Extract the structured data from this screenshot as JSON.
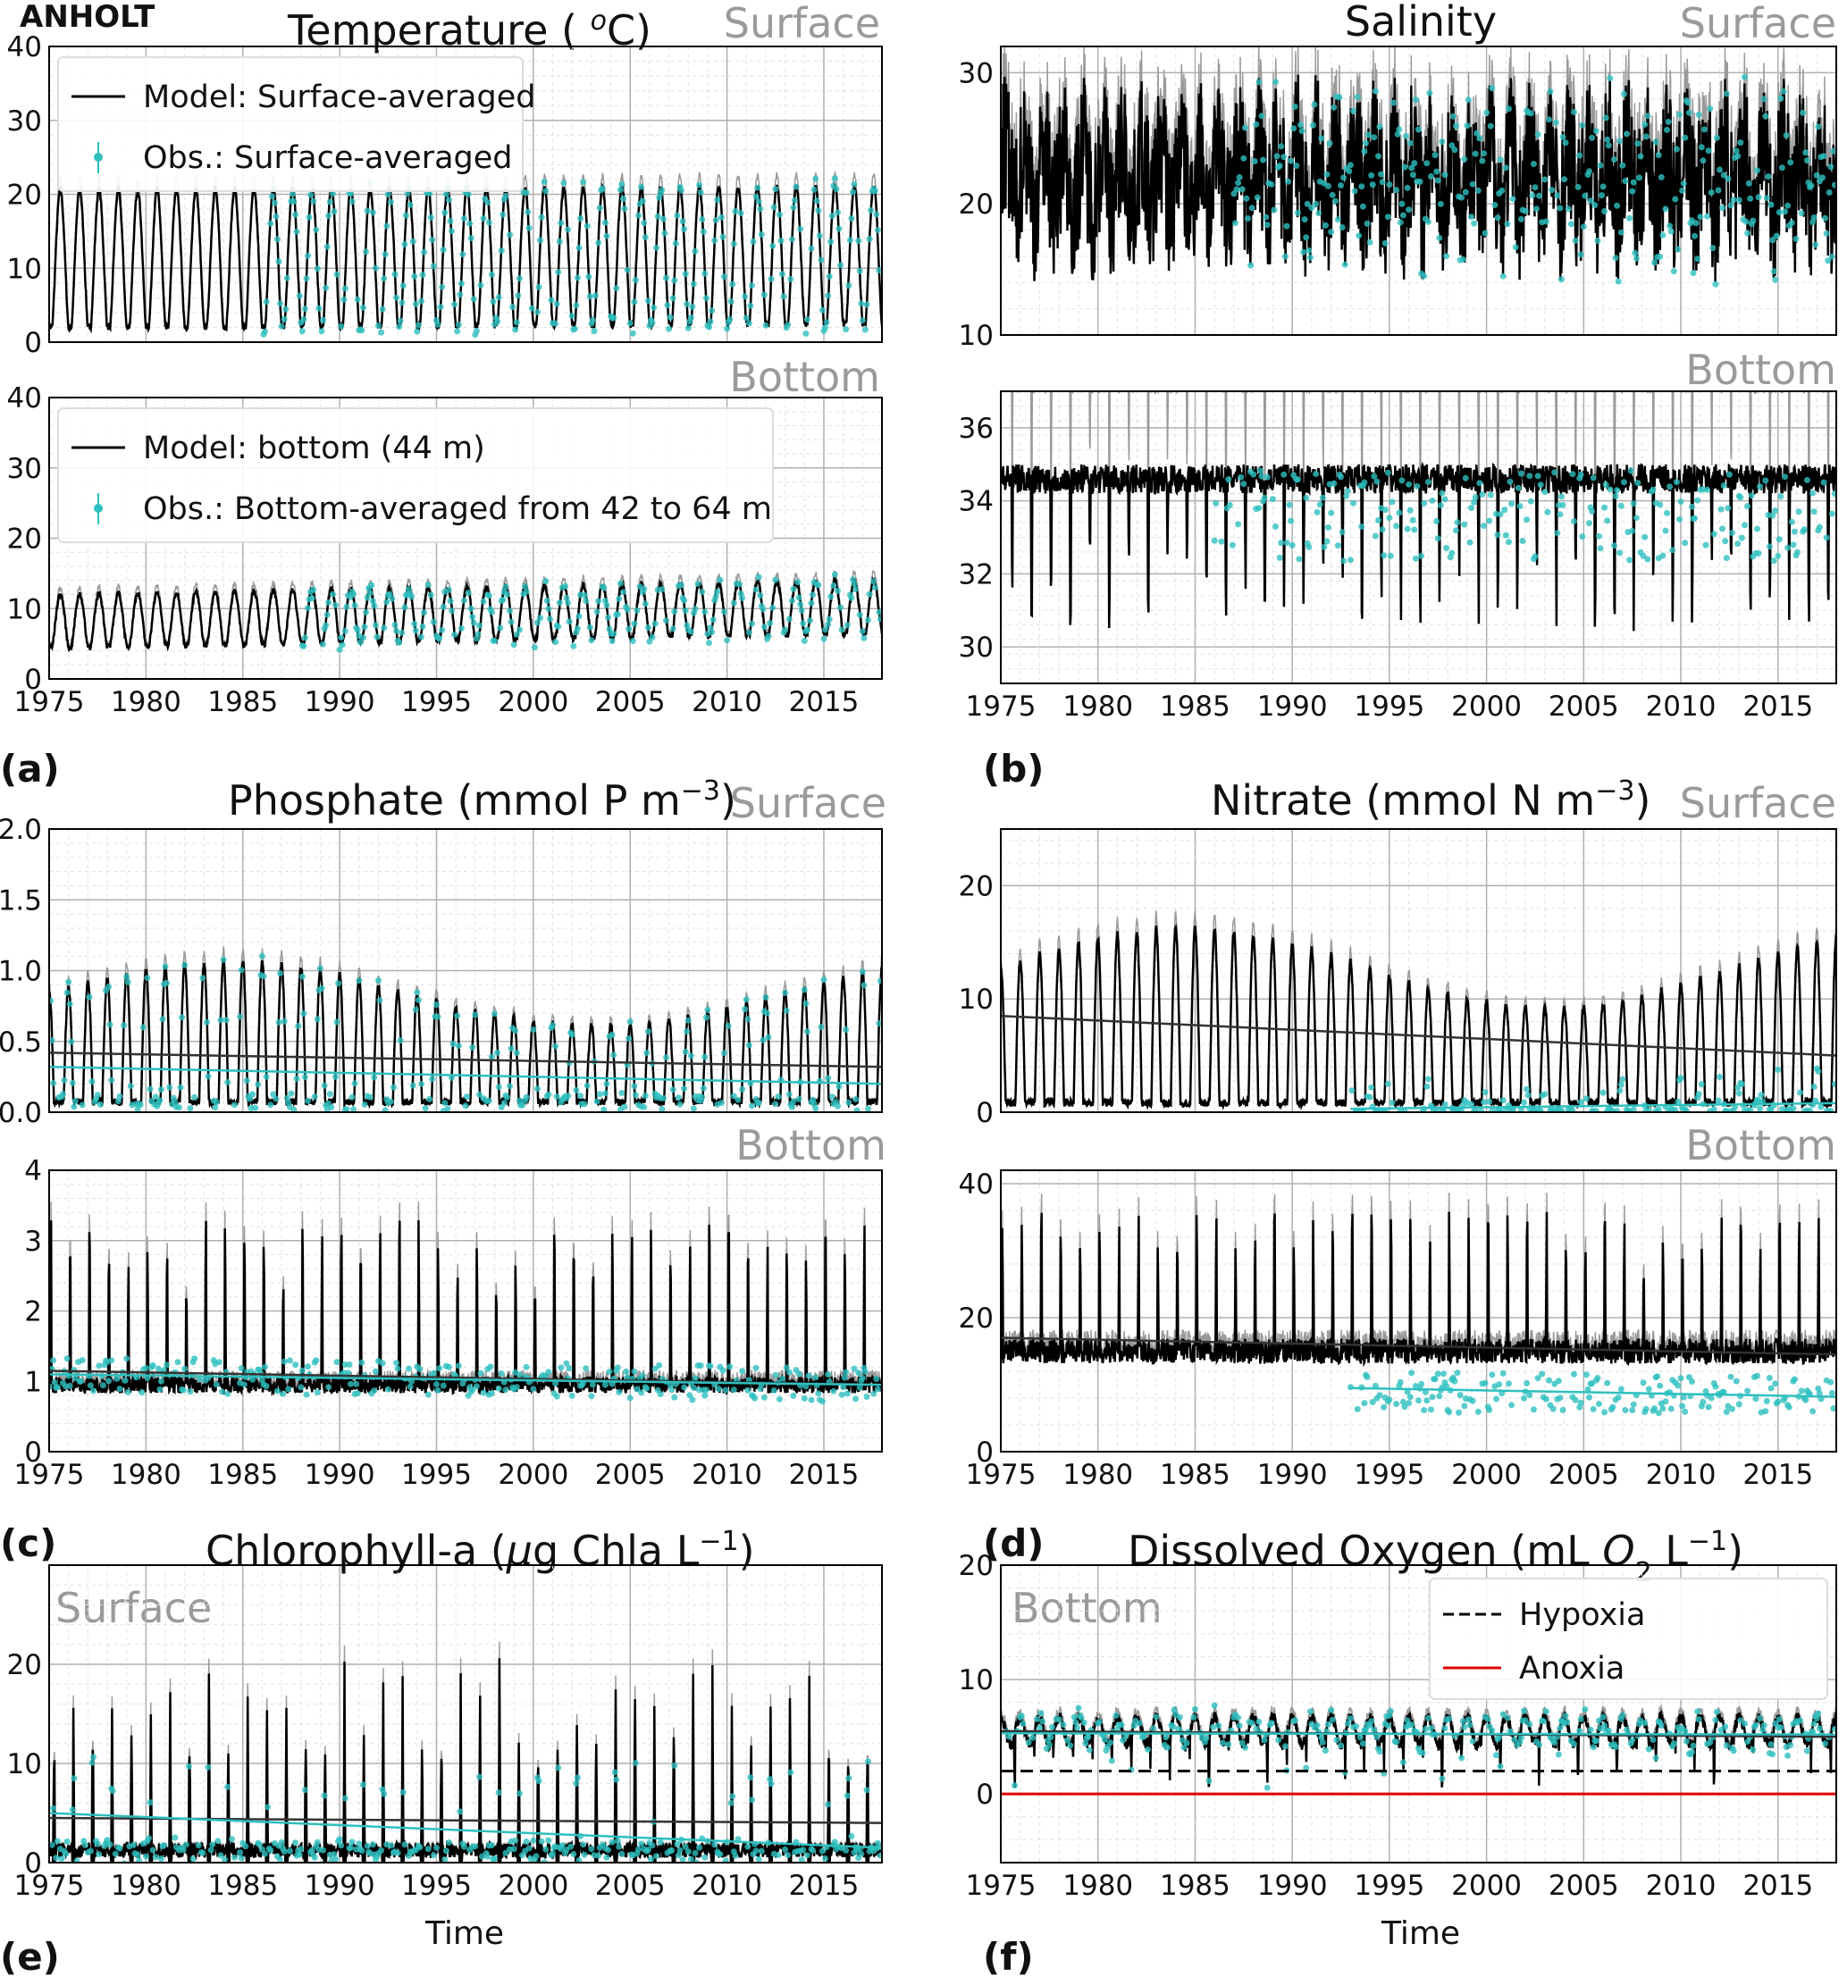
{
  "figure": {
    "station": "ANHOLT",
    "xlabel": "Time",
    "colors": {
      "model": "#000000",
      "model_band": "#9a9a9a",
      "obs": "#2ebfbf",
      "anoxia": "#e00000",
      "tag": "#9a9a9a"
    }
  },
  "chart_data": [
    {
      "id": "temp_surface",
      "type": "line",
      "panel": "(a)",
      "title": "Temperature ( °C)",
      "tag": "Surface",
      "xlim": [
        1975,
        2018
      ],
      "ylim": [
        0,
        40
      ],
      "yticks": [
        "0",
        "10",
        "20",
        "30",
        "40"
      ],
      "xticks": [],
      "series": [
        {
          "name": "Model: Surface-averaged",
          "kind": "model",
          "base": 2,
          "amp": 18.5,
          "trend": 0.5,
          "obs_from": 1986,
          "obs_density": 0.7
        }
      ],
      "legend": [
        "Model: Surface-averaged",
        "Obs.: Surface-averaged"
      ]
    },
    {
      "id": "temp_bottom",
      "type": "line",
      "tag": "Bottom",
      "xlim": [
        1975,
        2018
      ],
      "ylim": [
        0,
        40
      ],
      "yticks": [
        "0",
        "10",
        "20",
        "30",
        "40"
      ],
      "xticks": [
        "1975",
        "1980",
        "1985",
        "1990",
        "1995",
        "2000",
        "2005",
        "2010",
        "2015"
      ],
      "series": [
        {
          "name": "Model: bottom (44 m)",
          "kind": "model",
          "base": 4.5,
          "amp": 7.5,
          "trend": 2.0,
          "obs_from": 1988,
          "obs_density": 0.6
        }
      ],
      "legend": [
        "Model: bottom (44 m)",
        "Obs.: Bottom-averaged from 42 to 64 m"
      ]
    },
    {
      "id": "sal_surface",
      "type": "line",
      "panel": "(b)",
      "title": "Salinity",
      "tag": "Surface",
      "xlim": [
        1975,
        2018
      ],
      "ylim": [
        10,
        32
      ],
      "yticks": [
        "10",
        "20",
        "30"
      ],
      "ytickvals": [
        10,
        20,
        30
      ],
      "xticks": [],
      "series": [
        {
          "name": "Model",
          "kind": "noisy",
          "mean": 22,
          "spread": 5.5,
          "obs_from": 1987,
          "obs_density": 0.8
        }
      ]
    },
    {
      "id": "sal_bottom",
      "type": "line",
      "tag": "Bottom",
      "xlim": [
        1975,
        2018
      ],
      "ylim": [
        29,
        37
      ],
      "yticks": [
        "30",
        "32",
        "34",
        "36"
      ],
      "ytickvals": [
        30,
        32,
        34,
        36
      ],
      "xticks": [
        "1975",
        "1980",
        "1985",
        "1990",
        "1995",
        "2000",
        "2005",
        "2010",
        "2015"
      ],
      "series": [
        {
          "name": "Model",
          "kind": "dips",
          "mean": 34.6,
          "dip": 3.5,
          "obs_from": 1986,
          "obs_mean": 33.6
        }
      ]
    },
    {
      "id": "po4_surface",
      "type": "line",
      "panel": "(c)",
      "title": "Phosphate (mmol P m⁻³)",
      "tag": "Surface",
      "xlim": [
        1975,
        2018
      ],
      "ylim": [
        0,
        2
      ],
      "yticks": [
        "0.0",
        "0.5",
        "1.0",
        "1.5",
        "2.0"
      ],
      "ytickvals": [
        0,
        0.5,
        1,
        1.5,
        2
      ],
      "xticks": [],
      "series": [
        {
          "name": "Model",
          "kind": "winterpeak",
          "base": 0.05,
          "amp": 0.9,
          "obs_from": 1975,
          "trend_model": [
            0.42,
            0.32
          ],
          "trend_obs": [
            0.32,
            0.2
          ]
        }
      ]
    },
    {
      "id": "po4_bottom",
      "type": "line",
      "tag": "Bottom",
      "xlim": [
        1975,
        2018
      ],
      "ylim": [
        0,
        4
      ],
      "yticks": [
        "0",
        "1",
        "2",
        "3",
        "4"
      ],
      "ytickvals": [
        0,
        1,
        2,
        3,
        4
      ],
      "xticks": [
        "1975",
        "1980",
        "1985",
        "1990",
        "1995",
        "2000",
        "2005",
        "2010",
        "2015"
      ],
      "series": [
        {
          "name": "Model",
          "kind": "spiky",
          "base": 0.95,
          "amp": 1.8,
          "obs_from": 1975,
          "trend_model": [
            1.15,
            0.95
          ],
          "trend_obs": [
            1.1,
            0.95
          ]
        }
      ]
    },
    {
      "id": "no3_surface",
      "type": "line",
      "panel": "(d)",
      "title": "Nitrate (mmol N m⁻³)",
      "tag": "Surface",
      "xlim": [
        1975,
        2018
      ],
      "ylim": [
        0,
        25
      ],
      "yticks": [
        "0",
        "10",
        "20"
      ],
      "ytickvals": [
        0,
        10,
        20
      ],
      "xticks": [],
      "series": [
        {
          "name": "Model",
          "kind": "winterpeak",
          "base": 0.5,
          "amp": 14,
          "obs_from": 1993,
          "trend_model": [
            8.5,
            5.0
          ],
          "trend_obs": [
            0.3,
            0.8
          ]
        }
      ]
    },
    {
      "id": "no3_bottom",
      "type": "line",
      "tag": "Bottom",
      "xlim": [
        1975,
        2018
      ],
      "ylim": [
        0,
        42
      ],
      "yticks": [
        "0",
        "20",
        "40"
      ],
      "ytickvals": [
        0,
        20,
        40
      ],
      "xticks": [
        "1975",
        "1980",
        "1985",
        "1990",
        "1995",
        "2000",
        "2005",
        "2010",
        "2015"
      ],
      "series": [
        {
          "name": "Model",
          "kind": "spiky",
          "base": 15,
          "amp": 16,
          "obs_from": 1993,
          "trend_model": [
            17,
            14.5
          ],
          "trend_obs": [
            9.5,
            8.2
          ]
        }
      ]
    },
    {
      "id": "chla_surface",
      "type": "line",
      "panel": "(e)",
      "title": "Chlorophyll-a (µg Chla L⁻¹)",
      "tag": "Surface",
      "xlim": [
        1975,
        2018
      ],
      "ylim": [
        0,
        30
      ],
      "yticks": [
        "0",
        "10",
        "20"
      ],
      "ytickvals": [
        0,
        10,
        20
      ],
      "xticks": [
        "1975",
        "1980",
        "1985",
        "1990",
        "1995",
        "2000",
        "2005",
        "2010",
        "2015"
      ],
      "series": [
        {
          "name": "Model",
          "kind": "bloom",
          "base": 0.5,
          "amp": 16,
          "obs_from": 1975,
          "trend_model": [
            4.5,
            4.0
          ],
          "trend_obs": [
            5.0,
            1.5
          ]
        }
      ]
    },
    {
      "id": "o2_bottom",
      "type": "line",
      "panel": "(f)",
      "title": "Dissolved Oxygen (mL O₂ L⁻¹)",
      "tag": "Bottom",
      "xlim": [
        1975,
        2018
      ],
      "ylim": [
        -6,
        20
      ],
      "yticks": [
        "0",
        "10",
        "20"
      ],
      "ytickvals": [
        0,
        10,
        20
      ],
      "xticks": [
        "1975",
        "1980",
        "1985",
        "1990",
        "1995",
        "2000",
        "2005",
        "2010",
        "2015"
      ],
      "hlines": [
        {
          "name": "Hypoxia",
          "y": 2,
          "style": "dashed"
        },
        {
          "name": "Anoxia",
          "y": 0,
          "style": "solid"
        }
      ],
      "series": [
        {
          "name": "Model",
          "kind": "oxy",
          "base": 5.5,
          "amp": 2.0,
          "obs_from": 1975,
          "trend_model": [
            5.5,
            5.0
          ],
          "trend_obs": [
            5.3,
            5.2
          ]
        }
      ],
      "legend": [
        "Hypoxia",
        "Anoxia"
      ]
    }
  ]
}
